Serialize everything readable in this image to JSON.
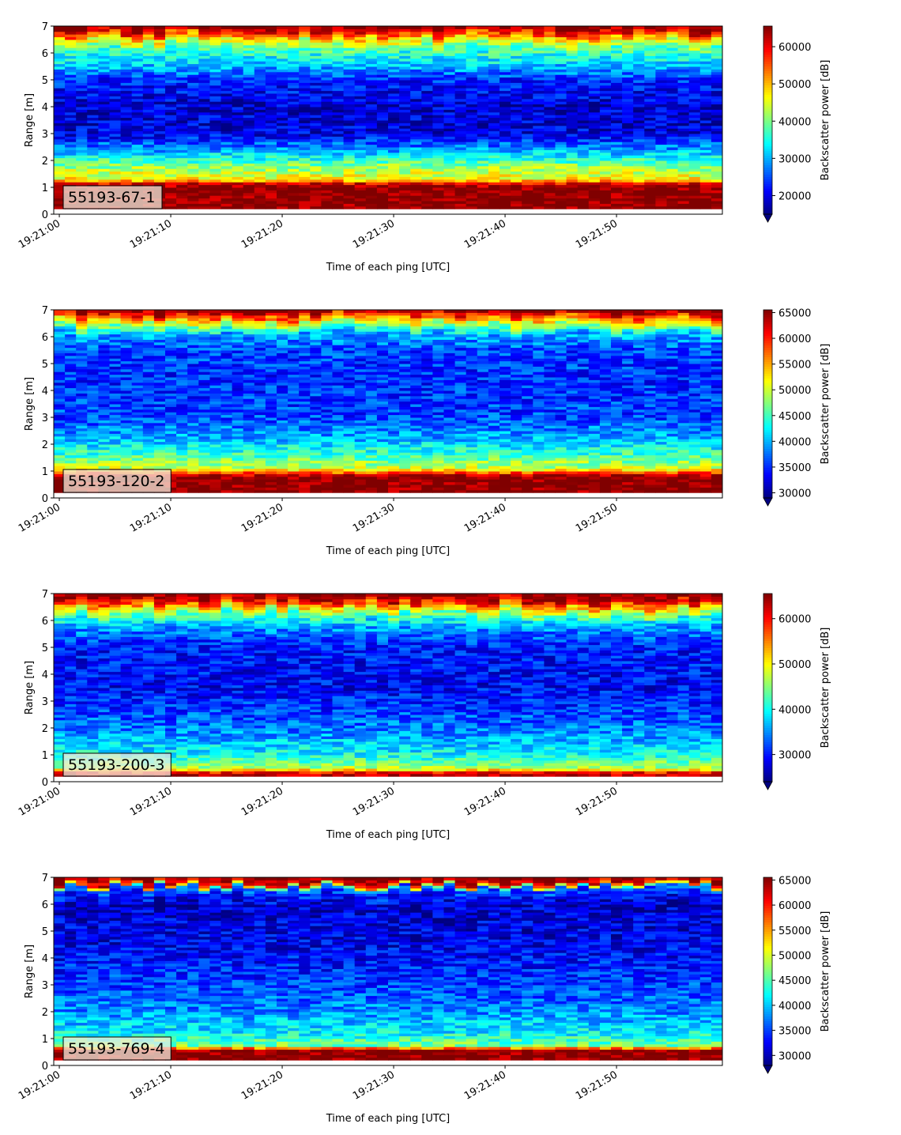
{
  "chart_data": [
    {
      "type": "heatmap",
      "label": "55193-67-1",
      "xlabel": "Time of each ping [UTC]",
      "ylabel": "Range [m]",
      "xticks": [
        "19:21:00",
        "19:21:10",
        "19:21:20",
        "19:21:30",
        "19:21:40",
        "19:21:50"
      ],
      "xlim_seconds": [
        0,
        60
      ],
      "ylim": [
        0,
        7
      ],
      "yticks": [
        0,
        1,
        2,
        3,
        4,
        5,
        6,
        7
      ],
      "colorbar": {
        "label": "Backscatter power [dB]",
        "ticks": [
          20000,
          30000,
          40000,
          50000,
          60000
        ],
        "range": [
          15000,
          65535
        ],
        "extend": "min"
      },
      "colormap": "jet",
      "profile": [
        {
          "r": 0.2,
          "v": 65535
        },
        {
          "r": 1.0,
          "v": 65535
        },
        {
          "r": 1.15,
          "v": 60000
        },
        {
          "r": 1.3,
          "v": 47000
        },
        {
          "r": 1.8,
          "v": 41000
        },
        {
          "r": 2.3,
          "v": 31000
        },
        {
          "r": 3.0,
          "v": 20000
        },
        {
          "r": 4.0,
          "v": 19000
        },
        {
          "r": 5.0,
          "v": 23000
        },
        {
          "r": 5.6,
          "v": 32000
        },
        {
          "r": 6.2,
          "v": 38000
        },
        {
          "r": 6.6,
          "v": 50000
        },
        {
          "r": 6.8,
          "v": 60000
        },
        {
          "r": 7.0,
          "v": 65535
        }
      ]
    },
    {
      "type": "heatmap",
      "label": "55193-120-2",
      "xlabel": "Time of each ping [UTC]",
      "ylabel": "Range [m]",
      "xticks": [
        "19:21:00",
        "19:21:10",
        "19:21:20",
        "19:21:30",
        "19:21:40",
        "19:21:50"
      ],
      "xlim_seconds": [
        0,
        60
      ],
      "ylim": [
        0,
        7
      ],
      "yticks": [
        0,
        1,
        2,
        3,
        4,
        5,
        6,
        7
      ],
      "colorbar": {
        "label": "Backscatter power [dB]",
        "ticks": [
          30000,
          35000,
          40000,
          45000,
          50000,
          55000,
          60000,
          65000
        ],
        "range": [
          29000,
          65535
        ],
        "extend": "min"
      },
      "colormap": "jet",
      "profile": [
        {
          "r": 0.2,
          "v": 65535
        },
        {
          "r": 0.8,
          "v": 65535
        },
        {
          "r": 0.95,
          "v": 58000
        },
        {
          "r": 1.1,
          "v": 50000
        },
        {
          "r": 1.6,
          "v": 45000
        },
        {
          "r": 2.2,
          "v": 40000
        },
        {
          "r": 3.0,
          "v": 36000
        },
        {
          "r": 4.5,
          "v": 35000
        },
        {
          "r": 5.5,
          "v": 36000
        },
        {
          "r": 6.1,
          "v": 40000
        },
        {
          "r": 6.5,
          "v": 50000
        },
        {
          "r": 6.8,
          "v": 60000
        },
        {
          "r": 7.0,
          "v": 65535
        }
      ]
    },
    {
      "type": "heatmap",
      "label": "55193-200-3",
      "xlabel": "Time of each ping [UTC]",
      "ylabel": "Range [m]",
      "xticks": [
        "19:21:00",
        "19:21:10",
        "19:21:20",
        "19:21:30",
        "19:21:40",
        "19:21:50"
      ],
      "xlim_seconds": [
        0,
        60
      ],
      "ylim": [
        0,
        7
      ],
      "yticks": [
        0,
        1,
        2,
        3,
        4,
        5,
        6,
        7
      ],
      "colorbar": {
        "label": "Backscatter power [dB]",
        "ticks": [
          30000,
          40000,
          50000,
          60000
        ],
        "range": [
          24000,
          65535
        ],
        "extend": "min"
      },
      "colormap": "jet",
      "profile": [
        {
          "r": 0.2,
          "v": 65535
        },
        {
          "r": 0.35,
          "v": 60000
        },
        {
          "r": 0.5,
          "v": 47000
        },
        {
          "r": 1.0,
          "v": 40000
        },
        {
          "r": 2.0,
          "v": 34000
        },
        {
          "r": 3.5,
          "v": 29000
        },
        {
          "r": 5.0,
          "v": 30000
        },
        {
          "r": 5.8,
          "v": 36000
        },
        {
          "r": 6.3,
          "v": 45000
        },
        {
          "r": 6.6,
          "v": 56000
        },
        {
          "r": 6.9,
          "v": 65535
        }
      ]
    },
    {
      "type": "heatmap",
      "label": "55193-769-4",
      "xlabel": "Time of each ping [UTC]",
      "ylabel": "Range [m]",
      "xticks": [
        "19:21:00",
        "19:21:10",
        "19:21:20",
        "19:21:30",
        "19:21:40",
        "19:21:50"
      ],
      "xlim_seconds": [
        0,
        60
      ],
      "ylim": [
        0,
        7
      ],
      "yticks": [
        0,
        1,
        2,
        3,
        4,
        5,
        6,
        7
      ],
      "colorbar": {
        "label": "Backscatter power [dB]",
        "ticks": [
          30000,
          35000,
          40000,
          45000,
          50000,
          55000,
          60000,
          65000
        ],
        "range": [
          28000,
          65535
        ],
        "extend": "min"
      },
      "colormap": "jet",
      "profile": [
        {
          "r": 0.25,
          "v": 65535
        },
        {
          "r": 0.6,
          "v": 65535
        },
        {
          "r": 0.7,
          "v": 47000
        },
        {
          "r": 1.2,
          "v": 42000
        },
        {
          "r": 2.0,
          "v": 38000
        },
        {
          "r": 3.0,
          "v": 35000
        },
        {
          "r": 4.5,
          "v": 32000
        },
        {
          "r": 6.0,
          "v": 31000
        },
        {
          "r": 6.6,
          "v": 36000
        },
        {
          "r": 6.75,
          "v": 60000
        },
        {
          "r": 7.0,
          "v": 65535
        }
      ]
    }
  ]
}
